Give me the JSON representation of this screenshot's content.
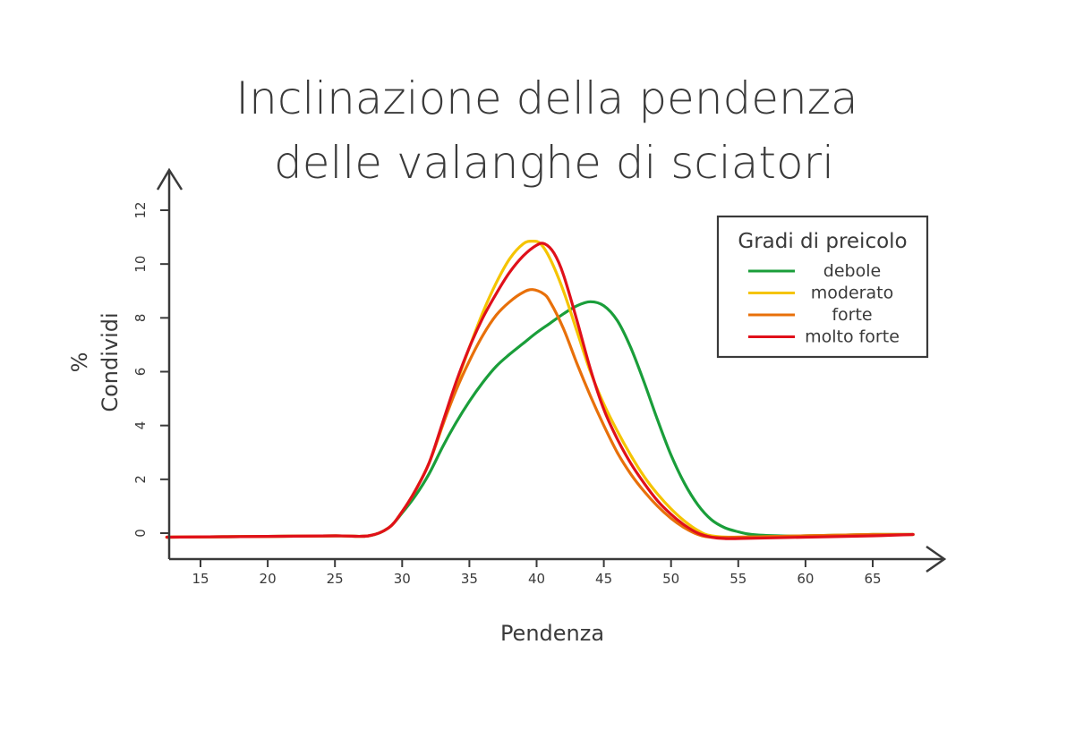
{
  "chart_data": {
    "type": "line",
    "title": [
      "Inclinazione della pendenza",
      "delle valanghe di sciatori"
    ],
    "xlabel": "Pendenza",
    "ylabel": [
      "%",
      "Condividi"
    ],
    "xlim": [
      12.5,
      69
    ],
    "ylim": [
      -1,
      13
    ],
    "x_ticks": [
      15,
      20,
      25,
      30,
      35,
      40,
      45,
      50,
      55,
      60,
      65
    ],
    "y_ticks": [
      0,
      2,
      4,
      6,
      8,
      10,
      12
    ],
    "grid": false,
    "legend": {
      "title": "Gradi di preicolo",
      "placement": "top-right"
    },
    "series": [
      {
        "name": "debole",
        "color": "#1a9e3a",
        "points": [
          [
            12.5,
            -0.15
          ],
          [
            20,
            -0.12
          ],
          [
            25,
            -0.1
          ],
          [
            27.5,
            -0.1
          ],
          [
            29,
            0.2
          ],
          [
            30,
            0.75
          ],
          [
            31,
            1.4
          ],
          [
            32,
            2.2
          ],
          [
            33,
            3.2
          ],
          [
            34,
            4.1
          ],
          [
            35,
            4.9
          ],
          [
            36,
            5.6
          ],
          [
            37,
            6.2
          ],
          [
            38,
            6.65
          ],
          [
            39,
            7.05
          ],
          [
            40,
            7.45
          ],
          [
            41,
            7.8
          ],
          [
            42,
            8.15
          ],
          [
            43,
            8.45
          ],
          [
            44,
            8.6
          ],
          [
            45,
            8.45
          ],
          [
            46,
            7.9
          ],
          [
            47,
            6.9
          ],
          [
            48,
            5.6
          ],
          [
            49,
            4.2
          ],
          [
            50,
            2.9
          ],
          [
            51,
            1.85
          ],
          [
            52,
            1.05
          ],
          [
            53,
            0.5
          ],
          [
            54,
            0.2
          ],
          [
            55,
            0.05
          ],
          [
            56,
            -0.05
          ],
          [
            58,
            -0.1
          ],
          [
            60,
            -0.1
          ],
          [
            65,
            -0.05
          ],
          [
            68,
            -0.05
          ]
        ]
      },
      {
        "name": "moderato",
        "color": "#f5c400",
        "points": [
          [
            12.5,
            -0.15
          ],
          [
            20,
            -0.12
          ],
          [
            25,
            -0.1
          ],
          [
            27.5,
            -0.1
          ],
          [
            29,
            0.2
          ],
          [
            30,
            0.8
          ],
          [
            31,
            1.6
          ],
          [
            32,
            2.6
          ],
          [
            33,
            4.0
          ],
          [
            34,
            5.5
          ],
          [
            35,
            6.9
          ],
          [
            36,
            8.2
          ],
          [
            37,
            9.3
          ],
          [
            38,
            10.2
          ],
          [
            39,
            10.75
          ],
          [
            39.7,
            10.85
          ],
          [
            40.3,
            10.75
          ],
          [
            41,
            10.2
          ],
          [
            42,
            9.0
          ],
          [
            43,
            7.5
          ],
          [
            44,
            6.0
          ],
          [
            45,
            4.8
          ],
          [
            46,
            3.8
          ],
          [
            47,
            2.9
          ],
          [
            48,
            2.1
          ],
          [
            49,
            1.45
          ],
          [
            50,
            0.9
          ],
          [
            51,
            0.45
          ],
          [
            52,
            0.1
          ],
          [
            53,
            -0.1
          ],
          [
            55,
            -0.15
          ],
          [
            60,
            -0.1
          ],
          [
            65,
            -0.05
          ],
          [
            68,
            -0.05
          ]
        ]
      },
      {
        "name": "forte",
        "color": "#e8700a",
        "points": [
          [
            12.5,
            -0.15
          ],
          [
            20,
            -0.12
          ],
          [
            25,
            -0.1
          ],
          [
            27.5,
            -0.1
          ],
          [
            29,
            0.2
          ],
          [
            30,
            0.8
          ],
          [
            31,
            1.6
          ],
          [
            32,
            2.6
          ],
          [
            33,
            4.0
          ],
          [
            34,
            5.3
          ],
          [
            35,
            6.4
          ],
          [
            36,
            7.35
          ],
          [
            37,
            8.1
          ],
          [
            38,
            8.6
          ],
          [
            39,
            8.95
          ],
          [
            39.7,
            9.05
          ],
          [
            40.5,
            8.9
          ],
          [
            41,
            8.6
          ],
          [
            42,
            7.6
          ],
          [
            43,
            6.3
          ],
          [
            44,
            5.1
          ],
          [
            45,
            4.0
          ],
          [
            46,
            3.0
          ],
          [
            47,
            2.2
          ],
          [
            48,
            1.55
          ],
          [
            49,
            1.0
          ],
          [
            50,
            0.55
          ],
          [
            51,
            0.2
          ],
          [
            52,
            -0.05
          ],
          [
            53,
            -0.15
          ],
          [
            55,
            -0.15
          ],
          [
            60,
            -0.1
          ],
          [
            65,
            -0.05
          ],
          [
            68,
            -0.05
          ]
        ]
      },
      {
        "name": "molto forte",
        "color": "#e0101a",
        "points": [
          [
            12.5,
            -0.15
          ],
          [
            20,
            -0.12
          ],
          [
            25,
            -0.1
          ],
          [
            27.5,
            -0.1
          ],
          [
            29,
            0.2
          ],
          [
            30,
            0.8
          ],
          [
            31,
            1.6
          ],
          [
            32,
            2.6
          ],
          [
            33,
            4.1
          ],
          [
            34,
            5.6
          ],
          [
            35,
            6.9
          ],
          [
            36,
            8.0
          ],
          [
            37,
            8.9
          ],
          [
            38,
            9.7
          ],
          [
            39,
            10.3
          ],
          [
            40,
            10.7
          ],
          [
            40.6,
            10.75
          ],
          [
            41.3,
            10.4
          ],
          [
            42,
            9.6
          ],
          [
            43,
            7.9
          ],
          [
            44,
            6.1
          ],
          [
            45,
            4.6
          ],
          [
            46,
            3.5
          ],
          [
            47,
            2.6
          ],
          [
            48,
            1.85
          ],
          [
            49,
            1.2
          ],
          [
            50,
            0.7
          ],
          [
            51,
            0.3
          ],
          [
            52,
            0.0
          ],
          [
            53,
            -0.15
          ],
          [
            54,
            -0.2
          ],
          [
            55,
            -0.2
          ],
          [
            60,
            -0.15
          ],
          [
            65,
            -0.1
          ],
          [
            68,
            -0.05
          ]
        ]
      }
    ]
  }
}
